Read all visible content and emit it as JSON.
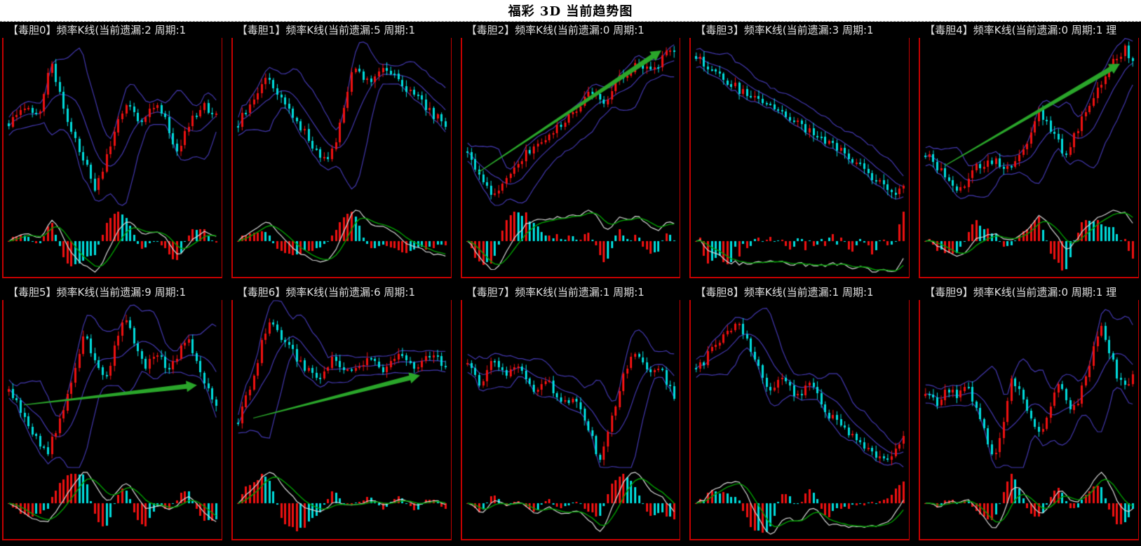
{
  "title": "福彩 3D 当前趋势图",
  "colors": {
    "background": "#000000",
    "titlebar_bg": "#ffffff",
    "title_text": "#000000",
    "header_text": "#e0e0e0",
    "panel_border": "#c40000",
    "candle_up": "#ee1111",
    "candle_down": "#00dcdc",
    "bollinger": "#4338ae",
    "macd_line_fast": "#d8d8d8",
    "macd_line_slow": "#00a000",
    "histogram_up": "#ee1111",
    "histogram_down": "#00dcdc",
    "arrow": "#2aa52a"
  },
  "chart_data": {
    "type": "candlestick-grid",
    "title": "福彩 3D 当前趋势图",
    "rows": 2,
    "cols": 5,
    "overlay": "bollinger-bands",
    "indicator": "macd-histogram",
    "grid": "off",
    "axis_labels": "none",
    "panels": [
      {
        "id": 0,
        "digit": 0,
        "label": "【毒胆0】频率K线(当前遗漏:2 周期:1",
        "current_miss": 2,
        "period": 1,
        "candles": 54,
        "seed": 101,
        "trend_keypoints": [
          [
            0,
            0.5
          ],
          [
            0.08,
            0.6
          ],
          [
            0.14,
            0.52
          ],
          [
            0.2,
            0.88
          ],
          [
            0.26,
            0.6
          ],
          [
            0.34,
            0.35
          ],
          [
            0.42,
            0.1
          ],
          [
            0.5,
            0.42
          ],
          [
            0.56,
            0.6
          ],
          [
            0.64,
            0.52
          ],
          [
            0.7,
            0.62
          ],
          [
            0.76,
            0.55
          ],
          [
            0.8,
            0.3
          ],
          [
            0.88,
            0.52
          ],
          [
            0.94,
            0.6
          ],
          [
            1,
            0.55
          ]
        ],
        "arrow": null
      },
      {
        "id": 1,
        "digit": 1,
        "label": "【毒胆1】频率K线(当前遗漏:5 周期:1",
        "current_miss": 5,
        "period": 1,
        "candles": 54,
        "seed": 202,
        "trend_keypoints": [
          [
            0,
            0.5
          ],
          [
            0.08,
            0.66
          ],
          [
            0.14,
            0.8
          ],
          [
            0.22,
            0.62
          ],
          [
            0.3,
            0.48
          ],
          [
            0.38,
            0.32
          ],
          [
            0.44,
            0.28
          ],
          [
            0.5,
            0.52
          ],
          [
            0.56,
            0.86
          ],
          [
            0.62,
            0.74
          ],
          [
            0.68,
            0.82
          ],
          [
            0.76,
            0.78
          ],
          [
            0.84,
            0.68
          ],
          [
            0.92,
            0.58
          ],
          [
            1,
            0.48
          ]
        ],
        "arrow": null
      },
      {
        "id": 2,
        "digit": 2,
        "label": "【毒胆2】频率K线(当前遗漏:0 周期:1",
        "current_miss": 0,
        "period": 1,
        "candles": 54,
        "seed": 303,
        "trend_keypoints": [
          [
            0,
            0.3
          ],
          [
            0.06,
            0.18
          ],
          [
            0.12,
            0.06
          ],
          [
            0.2,
            0.18
          ],
          [
            0.3,
            0.34
          ],
          [
            0.4,
            0.42
          ],
          [
            0.5,
            0.55
          ],
          [
            0.58,
            0.68
          ],
          [
            0.66,
            0.62
          ],
          [
            0.74,
            0.78
          ],
          [
            0.82,
            0.85
          ],
          [
            0.9,
            0.8
          ],
          [
            0.96,
            0.95
          ],
          [
            1,
            0.92
          ]
        ],
        "arrow": {
          "from": [
            0.06,
            0.8
          ],
          "to": [
            0.93,
            0.06
          ]
        }
      },
      {
        "id": 3,
        "digit": 3,
        "label": "【毒胆3】频率K线(当前遗漏:3 周期:1",
        "current_miss": 3,
        "period": 1,
        "candles": 54,
        "seed": 404,
        "trend_keypoints": [
          [
            0,
            0.9
          ],
          [
            0.08,
            0.82
          ],
          [
            0.16,
            0.74
          ],
          [
            0.24,
            0.68
          ],
          [
            0.32,
            0.62
          ],
          [
            0.4,
            0.58
          ],
          [
            0.48,
            0.5
          ],
          [
            0.56,
            0.44
          ],
          [
            0.64,
            0.38
          ],
          [
            0.72,
            0.3
          ],
          [
            0.8,
            0.22
          ],
          [
            0.88,
            0.14
          ],
          [
            0.94,
            0.07
          ],
          [
            1,
            0.12
          ]
        ],
        "arrow": null
      },
      {
        "id": 4,
        "digit": 4,
        "label": "【毒胆4】频率K线(当前遗漏:0 周期:1 理",
        "current_miss": 0,
        "period": 1,
        "candles": 54,
        "seed": 505,
        "trend_keypoints": [
          [
            0,
            0.32
          ],
          [
            0.08,
            0.2
          ],
          [
            0.16,
            0.08
          ],
          [
            0.24,
            0.22
          ],
          [
            0.32,
            0.28
          ],
          [
            0.4,
            0.22
          ],
          [
            0.48,
            0.35
          ],
          [
            0.55,
            0.58
          ],
          [
            0.62,
            0.42
          ],
          [
            0.68,
            0.3
          ],
          [
            0.76,
            0.55
          ],
          [
            0.84,
            0.72
          ],
          [
            0.92,
            0.9
          ],
          [
            0.96,
            0.95
          ],
          [
            1,
            0.85
          ]
        ],
        "arrow": {
          "from": [
            0.1,
            0.76
          ],
          "to": [
            0.93,
            0.14
          ]
        }
      },
      {
        "id": 5,
        "digit": 5,
        "label": "【毒胆5】频率K线(当前遗漏:9 周期:1",
        "current_miss": 9,
        "period": 1,
        "candles": 54,
        "seed": 606,
        "trend_keypoints": [
          [
            0,
            0.45
          ],
          [
            0.06,
            0.35
          ],
          [
            0.12,
            0.2
          ],
          [
            0.18,
            0.08
          ],
          [
            0.25,
            0.3
          ],
          [
            0.31,
            0.55
          ],
          [
            0.36,
            0.82
          ],
          [
            0.41,
            0.66
          ],
          [
            0.46,
            0.52
          ],
          [
            0.51,
            0.72
          ],
          [
            0.56,
            0.92
          ],
          [
            0.61,
            0.72
          ],
          [
            0.66,
            0.62
          ],
          [
            0.71,
            0.72
          ],
          [
            0.76,
            0.58
          ],
          [
            0.81,
            0.68
          ],
          [
            0.86,
            0.8
          ],
          [
            0.91,
            0.62
          ],
          [
            0.96,
            0.46
          ],
          [
            1,
            0.38
          ]
        ],
        "arrow": {
          "from": [
            0.08,
            0.62
          ],
          "to": [
            0.9,
            0.5
          ]
        }
      },
      {
        "id": 6,
        "digit": 6,
        "label": "【毒胆6】频率K线(当前遗漏:6 周期:1",
        "current_miss": 6,
        "period": 1,
        "candles": 54,
        "seed": 707,
        "trend_keypoints": [
          [
            0,
            0.28
          ],
          [
            0.06,
            0.5
          ],
          [
            0.12,
            0.78
          ],
          [
            0.16,
            0.9
          ],
          [
            0.22,
            0.76
          ],
          [
            0.3,
            0.64
          ],
          [
            0.38,
            0.54
          ],
          [
            0.46,
            0.66
          ],
          [
            0.54,
            0.56
          ],
          [
            0.62,
            0.66
          ],
          [
            0.7,
            0.58
          ],
          [
            0.78,
            0.7
          ],
          [
            0.86,
            0.6
          ],
          [
            0.93,
            0.68
          ],
          [
            1,
            0.62
          ]
        ],
        "arrow": {
          "from": [
            0.08,
            0.7
          ],
          "to": [
            0.87,
            0.44
          ]
        }
      },
      {
        "id": 7,
        "digit": 7,
        "label": "【毒胆7】频率K线(当前遗漏:1 周期:1",
        "current_miss": 1,
        "period": 1,
        "candles": 54,
        "seed": 808,
        "trend_keypoints": [
          [
            0,
            0.62
          ],
          [
            0.06,
            0.5
          ],
          [
            0.12,
            0.68
          ],
          [
            0.18,
            0.55
          ],
          [
            0.25,
            0.62
          ],
          [
            0.32,
            0.45
          ],
          [
            0.38,
            0.55
          ],
          [
            0.45,
            0.38
          ],
          [
            0.52,
            0.45
          ],
          [
            0.58,
            0.25
          ],
          [
            0.64,
            0.04
          ],
          [
            0.7,
            0.3
          ],
          [
            0.76,
            0.6
          ],
          [
            0.82,
            0.72
          ],
          [
            0.88,
            0.55
          ],
          [
            0.93,
            0.62
          ],
          [
            1,
            0.42
          ]
        ],
        "arrow": null
      },
      {
        "id": 8,
        "digit": 8,
        "label": "【毒胆8】频率K线(当前遗漏:1 周期:1",
        "current_miss": 1,
        "period": 1,
        "candles": 54,
        "seed": 909,
        "trend_keypoints": [
          [
            0,
            0.58
          ],
          [
            0.08,
            0.72
          ],
          [
            0.15,
            0.82
          ],
          [
            0.2,
            0.9
          ],
          [
            0.28,
            0.68
          ],
          [
            0.35,
            0.48
          ],
          [
            0.42,
            0.55
          ],
          [
            0.48,
            0.42
          ],
          [
            0.55,
            0.5
          ],
          [
            0.62,
            0.35
          ],
          [
            0.72,
            0.22
          ],
          [
            0.82,
            0.1
          ],
          [
            0.9,
            0.04
          ],
          [
            0.95,
            0.1
          ],
          [
            1,
            0.18
          ]
        ],
        "arrow": null
      },
      {
        "id": 9,
        "digit": 9,
        "label": "【毒胆9】频率K线(当前遗漏:0 周期:1 理",
        "current_miss": 0,
        "period": 1,
        "candles": 54,
        "seed": 1010,
        "trend_keypoints": [
          [
            0,
            0.45
          ],
          [
            0.06,
            0.38
          ],
          [
            0.1,
            0.5
          ],
          [
            0.15,
            0.42
          ],
          [
            0.2,
            0.52
          ],
          [
            0.26,
            0.3
          ],
          [
            0.33,
            0.06
          ],
          [
            0.38,
            0.3
          ],
          [
            0.42,
            0.55
          ],
          [
            0.48,
            0.38
          ],
          [
            0.55,
            0.2
          ],
          [
            0.6,
            0.38
          ],
          [
            0.65,
            0.5
          ],
          [
            0.7,
            0.32
          ],
          [
            0.75,
            0.45
          ],
          [
            0.8,
            0.68
          ],
          [
            0.85,
            0.85
          ],
          [
            0.9,
            0.65
          ],
          [
            0.95,
            0.48
          ],
          [
            1,
            0.55
          ]
        ],
        "arrow": null
      }
    ]
  }
}
